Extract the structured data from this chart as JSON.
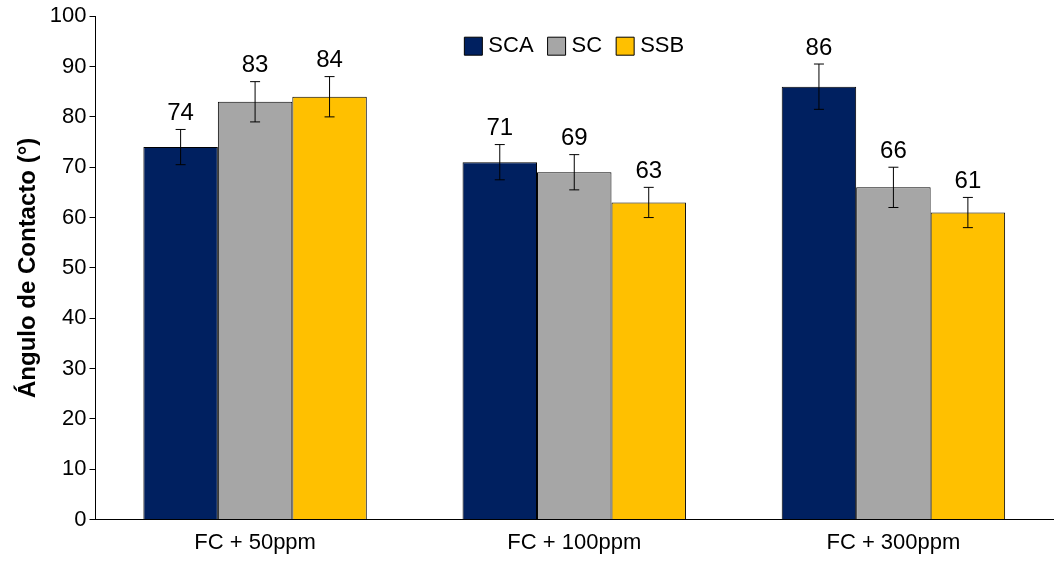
{
  "chart_data": {
    "type": "bar",
    "ylabel": "Ángulo de Contacto (°)",
    "categories": [
      "FC + 50ppm",
      "FC + 100ppm",
      "FC + 300ppm"
    ],
    "series": [
      {
        "name": "SCA",
        "color": "#002060",
        "values": [
          74,
          71,
          86
        ],
        "errors": [
          3.5,
          3.5,
          4.5
        ]
      },
      {
        "name": "SC",
        "color": "#a6a6a6",
        "values": [
          83,
          69,
          66
        ],
        "errors": [
          4,
          3.5,
          4
        ]
      },
      {
        "name": "SSB",
        "color": "#ffc000",
        "values": [
          84,
          63,
          61
        ],
        "errors": [
          4,
          3,
          3
        ]
      }
    ],
    "ylim": [
      0,
      100
    ],
    "yticks": [
      0,
      10,
      20,
      30,
      40,
      50,
      60,
      70,
      80,
      90,
      100
    ],
    "data_labels": true,
    "legend": "top",
    "grid": false
  }
}
